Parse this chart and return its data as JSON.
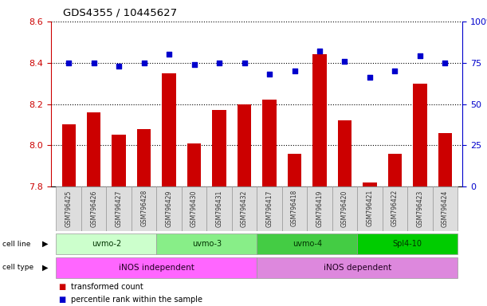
{
  "title": "GDS4355 / 10445627",
  "samples": [
    "GSM796425",
    "GSM796426",
    "GSM796427",
    "GSM796428",
    "GSM796429",
    "GSM796430",
    "GSM796431",
    "GSM796432",
    "GSM796417",
    "GSM796418",
    "GSM796419",
    "GSM796420",
    "GSM796421",
    "GSM796422",
    "GSM796423",
    "GSM796424"
  ],
  "transformed_count": [
    8.1,
    8.16,
    8.05,
    8.08,
    8.35,
    8.01,
    8.17,
    8.2,
    8.22,
    7.96,
    8.44,
    8.12,
    7.82,
    7.96,
    8.3,
    8.06
  ],
  "percentile_rank": [
    75,
    75,
    73,
    75,
    80,
    74,
    75,
    75,
    68,
    70,
    82,
    76,
    66,
    70,
    79,
    75
  ],
  "ylim_left": [
    7.8,
    8.6
  ],
  "ylim_right": [
    0,
    100
  ],
  "yticks_left": [
    7.8,
    8.0,
    8.2,
    8.4,
    8.6
  ],
  "yticks_right": [
    0,
    25,
    50,
    75,
    100
  ],
  "bar_color": "#cc0000",
  "dot_color": "#0000cc",
  "grid_color": "#000000",
  "cell_lines": [
    {
      "label": "uvmo-2",
      "start": 0,
      "end": 4,
      "color": "#ccffcc"
    },
    {
      "label": "uvmo-3",
      "start": 4,
      "end": 8,
      "color": "#88ee88"
    },
    {
      "label": "uvmo-4",
      "start": 8,
      "end": 12,
      "color": "#44cc44"
    },
    {
      "label": "Spl4-10",
      "start": 12,
      "end": 16,
      "color": "#00cc00"
    }
  ],
  "cell_types": [
    {
      "label": "iNOS independent",
      "start": 0,
      "end": 8,
      "color": "#ff66ff"
    },
    {
      "label": "iNOS dependent",
      "start": 8,
      "end": 16,
      "color": "#dd88dd"
    }
  ],
  "left_axis_color": "#cc0000",
  "right_axis_color": "#0000cc",
  "legend_items": [
    {
      "color": "#cc0000",
      "label": "transformed count"
    },
    {
      "color": "#0000cc",
      "label": "percentile rank within the sample"
    }
  ]
}
